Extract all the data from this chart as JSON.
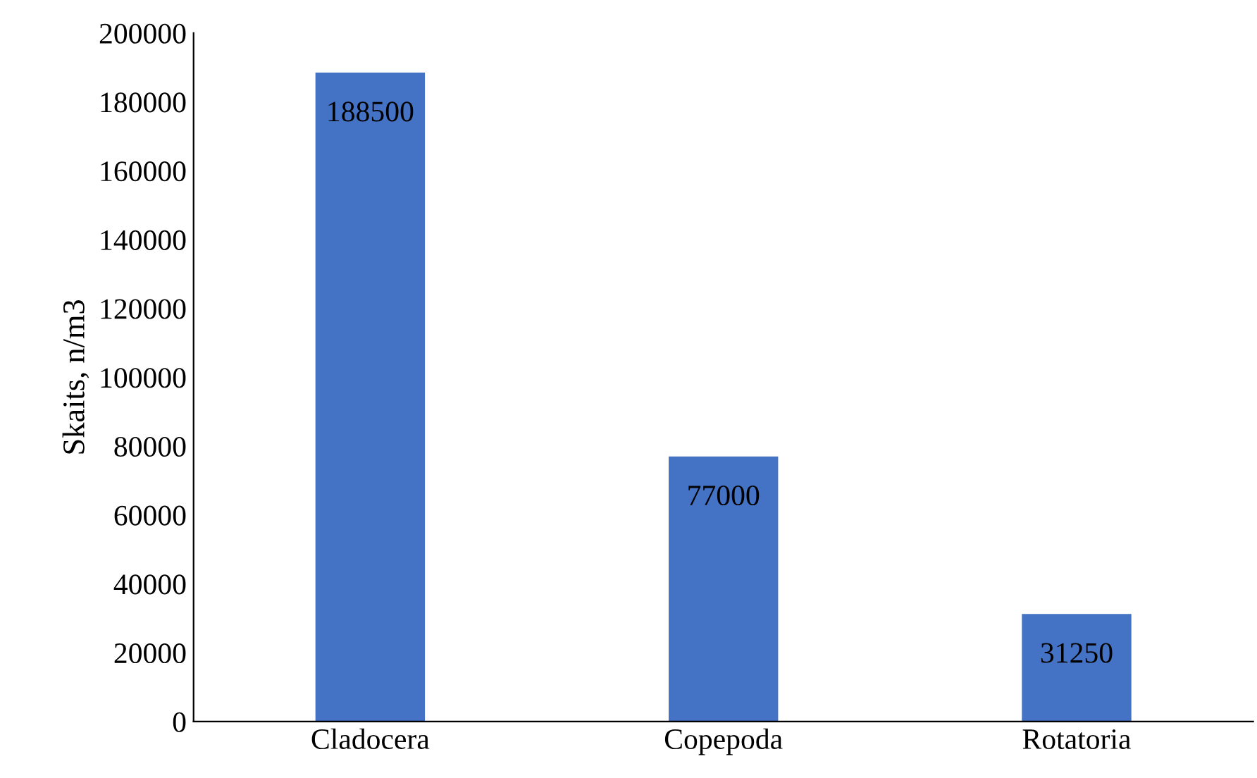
{
  "chart_data": {
    "type": "bar",
    "ylabel": "Skaits, n/m3",
    "categories": [
      "Cladocera",
      "Copepoda",
      "Rotatoria"
    ],
    "values": [
      188500,
      77000,
      31250
    ],
    "color": "#4472c4",
    "ylim": [
      0,
      200000
    ],
    "yticks": [
      0,
      20000,
      40000,
      60000,
      80000,
      100000,
      120000,
      140000,
      160000,
      180000,
      200000
    ],
    "data_labels": true,
    "grid": false,
    "legend": false
  }
}
